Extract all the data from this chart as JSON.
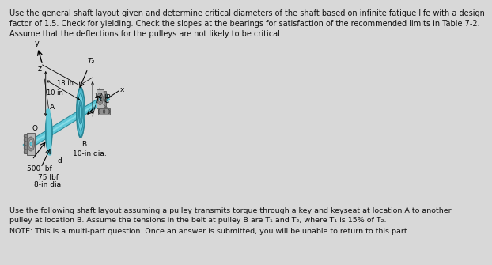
{
  "bg_color": "#d8d8d8",
  "title_text": "Use the general shaft layout given and determine critical diameters of the shaft based on infinite fatigue life with a design\nfactor of 1.5. Check for yielding. Check the slopes at the bearings for satisfaction of the recommended limits in Table 7-2.\nAssume that the deflections for the pulleys are not likely to be critical.",
  "bottom_text1": "Use the following shaft layout assuming a pulley transmits torque through a key and keyseat at location A to another\npulley at location B. Assume the tensions in the belt at pulley B are T₁ and T₂, where T₁ is 15% of T₂.",
  "bottom_text2": "NOTE: This is a multi-part question. Once an answer is submitted, you will be unable to return to this part.",
  "label_500": "500 lbf",
  "label_75": "75 lbf",
  "label_8in": "8-in dia.",
  "label_10in": "10-in dia.",
  "label_10_dim": "10 in",
  "label_18in": "18 in",
  "label_12in": "12 in",
  "label_T1": "T₁",
  "label_T2": "T₂",
  "label_A": "A",
  "label_B": "B",
  "label_C": "C",
  "label_O": "O",
  "label_d": "d",
  "label_x": "x",
  "label_y": "y",
  "label_z": "z",
  "shaft_color": "#60c8d8",
  "shaft_dark": "#2a8898",
  "shaft_light": "#a0e8f0",
  "pulley_outer": "#50b8cc",
  "pulley_mid": "#70d0e0",
  "pulley_inner": "#40a0b8",
  "bearing_gray": "#a0a0a0",
  "bearing_dark": "#606060",
  "mount_gray": "#909090",
  "text_color": "#111111",
  "dim_line_color": "#333333",
  "title_fontsize": 7.0,
  "body_fontsize": 6.8,
  "note_fontsize": 6.8
}
